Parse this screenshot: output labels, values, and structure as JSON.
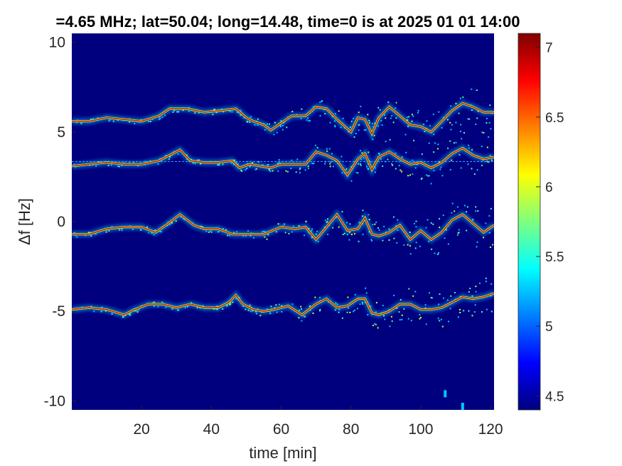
{
  "chart_data": {
    "type": "heatmap",
    "title": "=4.65 MHz;  lat=50.04; long=14.48, time=0 is at 2025 01 01 14:00",
    "xlabel": "time [min]",
    "ylabel": "Δf [Hz]",
    "xlim": [
      0,
      121
    ],
    "ylim": [
      -10.5,
      10.5
    ],
    "xticks": [
      20,
      40,
      60,
      80,
      100,
      120
    ],
    "yticks": [
      10,
      5,
      0,
      -5,
      -10
    ],
    "colorbar": {
      "range": [
        4.4,
        7.1
      ],
      "ticks": [
        7,
        6.5,
        6,
        5.5,
        5,
        4.5
      ],
      "colormap": "jet"
    },
    "background_color": "#00007f",
    "traces": [
      {
        "name": "",
        "points": [
          [
            0,
            5.6
          ],
          [
            5,
            5.6
          ],
          [
            10,
            5.8
          ],
          [
            15,
            5.7
          ],
          [
            20,
            5.6
          ],
          [
            25,
            5.9
          ],
          [
            28,
            6.3
          ],
          [
            33,
            6.3
          ],
          [
            38,
            6.1
          ],
          [
            43,
            6.2
          ],
          [
            47,
            6.3
          ],
          [
            50,
            5.8
          ],
          [
            52,
            5.6
          ],
          [
            55,
            5.4
          ],
          [
            57,
            5.1
          ],
          [
            60,
            5.5
          ],
          [
            63,
            5.9
          ],
          [
            67,
            5.9
          ],
          [
            70,
            6.4
          ],
          [
            73,
            6.3
          ],
          [
            76,
            5.7
          ],
          [
            80,
            5.0
          ],
          [
            82,
            5.8
          ],
          [
            84,
            5.7
          ],
          [
            86,
            4.9
          ],
          [
            88,
            5.8
          ],
          [
            91,
            6.4
          ],
          [
            94,
            5.9
          ],
          [
            97,
            5.4
          ],
          [
            100,
            5.3
          ],
          [
            103,
            5.0
          ],
          [
            106,
            5.6
          ],
          [
            109,
            6.2
          ],
          [
            112,
            6.6
          ],
          [
            115,
            6.4
          ],
          [
            118,
            6.1
          ],
          [
            121,
            6.1
          ]
        ]
      },
      {
        "name": "",
        "points": [
          [
            0,
            3.1
          ],
          [
            5,
            3.2
          ],
          [
            10,
            3.3
          ],
          [
            15,
            3.2
          ],
          [
            20,
            3.2
          ],
          [
            25,
            3.4
          ],
          [
            28,
            3.7
          ],
          [
            31,
            4.0
          ],
          [
            34,
            3.4
          ],
          [
            38,
            3.3
          ],
          [
            42,
            3.3
          ],
          [
            46,
            3.4
          ],
          [
            48,
            3.0
          ],
          [
            51,
            3.2
          ],
          [
            54,
            3.1
          ],
          [
            57,
            3.0
          ],
          [
            60,
            3.2
          ],
          [
            64,
            3.2
          ],
          [
            67,
            3.2
          ],
          [
            70,
            3.9
          ],
          [
            73,
            3.7
          ],
          [
            76,
            3.4
          ],
          [
            79,
            2.6
          ],
          [
            82,
            3.5
          ],
          [
            84,
            3.8
          ],
          [
            86,
            2.9
          ],
          [
            88,
            3.6
          ],
          [
            91,
            3.9
          ],
          [
            94,
            3.5
          ],
          [
            97,
            3.2
          ],
          [
            100,
            3.3
          ],
          [
            103,
            3.0
          ],
          [
            106,
            3.3
          ],
          [
            109,
            3.8
          ],
          [
            112,
            4.1
          ],
          [
            115,
            3.7
          ],
          [
            118,
            3.5
          ],
          [
            121,
            3.6
          ]
        ]
      },
      {
        "name": "",
        "points": [
          [
            0,
            -0.7
          ],
          [
            5,
            -0.7
          ],
          [
            10,
            -0.4
          ],
          [
            15,
            -0.3
          ],
          [
            20,
            -0.3
          ],
          [
            24,
            -0.6
          ],
          [
            27,
            -0.2
          ],
          [
            31,
            0.4
          ],
          [
            35,
            -0.2
          ],
          [
            38,
            -0.4
          ],
          [
            42,
            -0.4
          ],
          [
            46,
            -0.7
          ],
          [
            50,
            -0.7
          ],
          [
            55,
            -0.7
          ],
          [
            60,
            -0.3
          ],
          [
            64,
            -0.4
          ],
          [
            67,
            -0.3
          ],
          [
            70,
            -1.0
          ],
          [
            73,
            -0.3
          ],
          [
            76,
            0.4
          ],
          [
            79,
            -0.5
          ],
          [
            82,
            -0.4
          ],
          [
            84,
            0.2
          ],
          [
            86,
            -0.7
          ],
          [
            88,
            -0.8
          ],
          [
            91,
            -0.6
          ],
          [
            94,
            -0.2
          ],
          [
            97,
            -1.0
          ],
          [
            100,
            -0.5
          ],
          [
            103,
            -1.0
          ],
          [
            106,
            -0.6
          ],
          [
            109,
            0.1
          ],
          [
            112,
            0.4
          ],
          [
            115,
            -0.1
          ],
          [
            118,
            -0.6
          ],
          [
            121,
            -0.2
          ]
        ]
      },
      {
        "name": "",
        "points": [
          [
            0,
            -4.9
          ],
          [
            5,
            -4.8
          ],
          [
            10,
            -4.9
          ],
          [
            15,
            -5.2
          ],
          [
            18,
            -4.9
          ],
          [
            22,
            -4.6
          ],
          [
            26,
            -4.6
          ],
          [
            30,
            -4.8
          ],
          [
            34,
            -4.6
          ],
          [
            38,
            -4.8
          ],
          [
            42,
            -4.8
          ],
          [
            45,
            -4.5
          ],
          [
            47,
            -4.1
          ],
          [
            49,
            -4.6
          ],
          [
            52,
            -4.9
          ],
          [
            55,
            -5.0
          ],
          [
            58,
            -4.9
          ],
          [
            62,
            -4.7
          ],
          [
            66,
            -5.2
          ],
          [
            70,
            -4.6
          ],
          [
            73,
            -4.3
          ],
          [
            76,
            -4.8
          ],
          [
            79,
            -4.7
          ],
          [
            82,
            -4.3
          ],
          [
            84,
            -4.3
          ],
          [
            86,
            -5.1
          ],
          [
            88,
            -5.2
          ],
          [
            91,
            -5.0
          ],
          [
            94,
            -4.6
          ],
          [
            97,
            -4.6
          ],
          [
            100,
            -4.9
          ],
          [
            103,
            -4.9
          ],
          [
            106,
            -4.8
          ],
          [
            109,
            -4.5
          ],
          [
            112,
            -4.2
          ],
          [
            115,
            -4.3
          ],
          [
            118,
            -4.2
          ],
          [
            121,
            -4.0
          ]
        ]
      }
    ],
    "reference_line": {
      "y": 3.35,
      "style": "dashed"
    },
    "spots": [
      [
        107,
        -9.6
      ],
      [
        112,
        -10.3
      ]
    ]
  }
}
